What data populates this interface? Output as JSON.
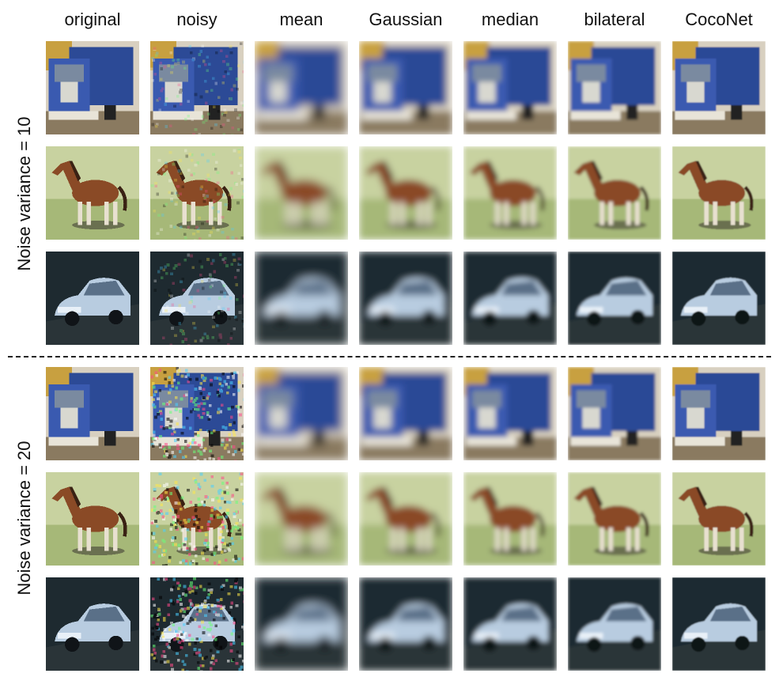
{
  "figure": {
    "columns": [
      "original",
      "noisy",
      "mean",
      "Gaussian",
      "median",
      "bilateral",
      "CocoNet"
    ],
    "groups": [
      {
        "label": "Noise variance = 10",
        "rows": [
          "truck",
          "horse",
          "car"
        ]
      },
      {
        "label": "Noise variance = 20",
        "rows": [
          "truck",
          "horse",
          "car"
        ]
      }
    ]
  },
  "styles": {
    "truck": {
      "sky": "#d8d0c0",
      "corner": "#c8a040",
      "ground": "#8a7a60",
      "body": "#2c4a96",
      "cab": "#3a5ab0",
      "grille": "#d8d8d0",
      "bumper": "#e8e4d8"
    },
    "horse": {
      "bg": "#c8d2a0",
      "grass": "#a6b878",
      "body": "#8a4a26",
      "mane": "#3a2214",
      "legs": "#e8e0d0",
      "shadow": "#6a7050"
    },
    "car": {
      "bg": "#1e2a30",
      "road": "#2a3438",
      "body": "#b8cce0",
      "window": "#5a7088",
      "wheel": "#101418"
    }
  }
}
